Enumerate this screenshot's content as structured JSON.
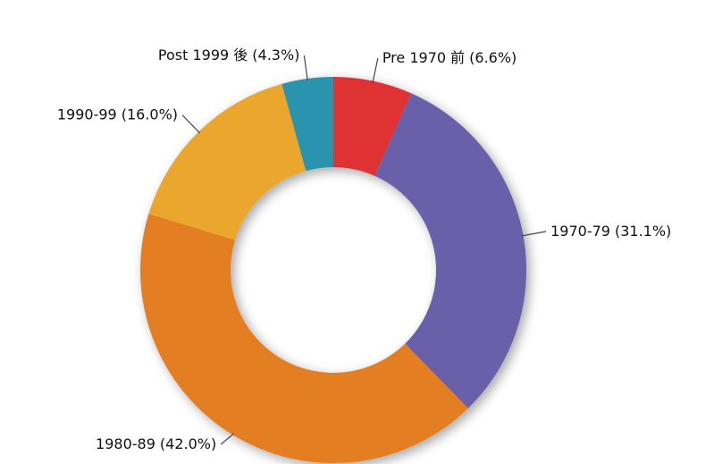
{
  "chart_data": {
    "type": "donut",
    "categories": [
      "Pre 1970 前",
      "1970-79",
      "1980-89",
      "1990-99",
      "Post 1999 後"
    ],
    "values": [
      6.6,
      31.1,
      42.0,
      16.0,
      4.3
    ],
    "value_labels": [
      "(6.6%)",
      "(31.1%)",
      "(42.0%)",
      "(16.0%)",
      "(4.3%)"
    ],
    "colors": [
      "#df3131",
      "#6b5fa9",
      "#e37e20",
      "#eba62d",
      "#2b93ad"
    ]
  }
}
